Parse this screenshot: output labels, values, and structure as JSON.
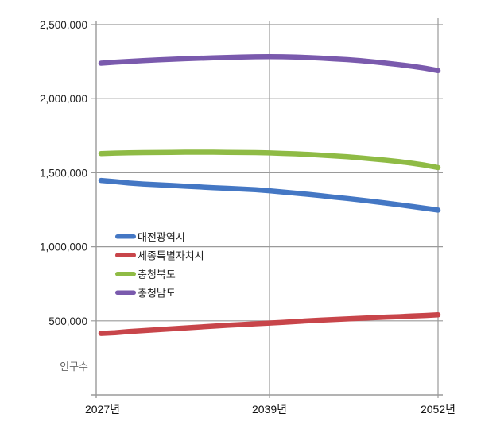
{
  "chart_data": {
    "type": "line",
    "title": "",
    "xlabel": "",
    "ylabel": "인구수",
    "ylim": [
      0,
      2500000
    ],
    "y_ticks": [
      {
        "value": 500000,
        "label": "500,000"
      },
      {
        "value": 1000000,
        "label": "1,000,000"
      },
      {
        "value": 1500000,
        "label": "1,500,000"
      },
      {
        "value": 2000000,
        "label": "2,000,000"
      },
      {
        "value": 2500000,
        "label": "2,500,000"
      }
    ],
    "x_ticks": [
      {
        "year": 2027,
        "label": "2027년"
      },
      {
        "year": 2039,
        "label": "2039년"
      },
      {
        "year": 2052,
        "label": "2052년"
      }
    ],
    "grid": true,
    "legend_position": "inside-left",
    "x": [
      2027,
      2028,
      2029,
      2030,
      2031,
      2032,
      2033,
      2034,
      2035,
      2036,
      2037,
      2038,
      2039,
      2040,
      2041,
      2042,
      2043,
      2044,
      2045,
      2046,
      2047,
      2048,
      2049,
      2050,
      2051,
      2052
    ],
    "series": [
      {
        "name": "대전광역시",
        "color": "#4477c4",
        "values": [
          1448000,
          1440000,
          1430000,
          1424000,
          1419000,
          1414000,
          1409000,
          1404000,
          1399000,
          1395000,
          1390000,
          1385000,
          1378000,
          1370000,
          1362000,
          1354000,
          1345000,
          1335000,
          1326000,
          1316000,
          1306000,
          1295000,
          1284000,
          1272000,
          1260000,
          1248000
        ]
      },
      {
        "name": "세종특별자치시",
        "color": "#c8454a",
        "values": [
          415000,
          420000,
          428000,
          434000,
          440000,
          446000,
          452000,
          458000,
          464000,
          470000,
          475000,
          480000,
          485000,
          490000,
          495000,
          500000,
          505000,
          509000,
          513000,
          517000,
          521000,
          525000,
          528000,
          532000,
          536000,
          540000
        ]
      },
      {
        "name": "충청북도",
        "color": "#8fbb45",
        "values": [
          1630000,
          1633000,
          1635000,
          1636000,
          1637000,
          1638000,
          1639000,
          1639000,
          1639000,
          1638000,
          1637000,
          1636000,
          1634000,
          1631000,
          1628000,
          1624000,
          1619000,
          1614000,
          1608000,
          1601000,
          1593000,
          1585000,
          1575000,
          1564000,
          1551000,
          1535000
        ]
      },
      {
        "name": "충청남도",
        "color": "#7a5aad",
        "values": [
          2240000,
          2246000,
          2252000,
          2257000,
          2262000,
          2266000,
          2270000,
          2273000,
          2276000,
          2279000,
          2281000,
          2283000,
          2284000,
          2283000,
          2281000,
          2278000,
          2274000,
          2269000,
          2264000,
          2257000,
          2249000,
          2240000,
          2230000,
          2219000,
          2206000,
          2190000
        ]
      }
    ]
  },
  "axis": {
    "ylabel": "인구수"
  },
  "legend": {
    "items": [
      "대전광역시",
      "세종특별자치시",
      "충청북도",
      "충청남도"
    ]
  }
}
